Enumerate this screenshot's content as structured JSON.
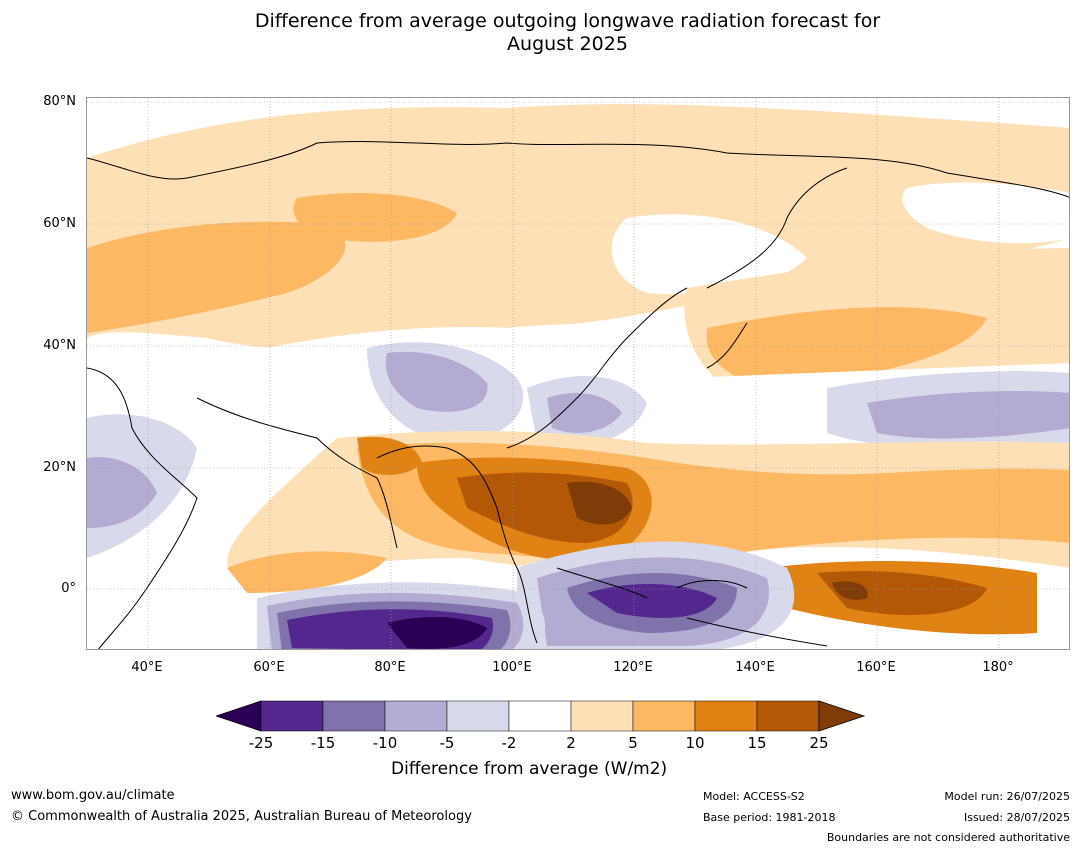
{
  "title_line1": "Difference from average outgoing longwave radiation forecast for",
  "title_line2": "August 2025",
  "lat_labels": [
    "80°N",
    "60°N",
    "40°N",
    "20°N",
    "0°"
  ],
  "lon_labels": [
    "40°E",
    "60°E",
    "80°E",
    "100°E",
    "120°E",
    "140°E",
    "160°E",
    "180°"
  ],
  "colorbar": {
    "ticks": [
      "-25",
      "-15",
      "-10",
      "-5",
      "-2",
      "2",
      "5",
      "10",
      "15",
      "25"
    ],
    "colors": [
      "#2a0054",
      "#54278f",
      "#8073ac",
      "#b2abd2",
      "#d8daeb",
      "#ffffff",
      "#fee0b6",
      "#fdb863",
      "#e08214",
      "#b35806",
      "#7f3b08"
    ],
    "label": "Difference from average (W/m2)"
  },
  "footer": {
    "website": "www.bom.gov.au/climate",
    "copyright": "© Commonwealth of Australia 2025, Australian Bureau of Meteorology",
    "model": "Model: ACCESS-S2",
    "base_period": "Base period: 1981-2018",
    "model_run": "Model run: 26/07/2025",
    "issued": "Issued: 28/07/2025",
    "disclaimer": "Boundaries are not considered authoritative"
  }
}
